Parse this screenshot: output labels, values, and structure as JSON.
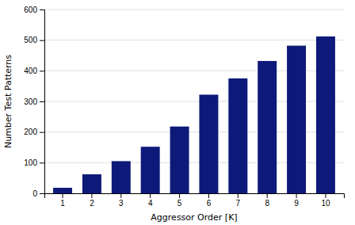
{
  "chart_data": {
    "type": "bar",
    "categories": [
      1,
      2,
      3,
      4,
      5,
      6,
      7,
      8,
      9,
      10
    ],
    "values": [
      18,
      62,
      105,
      152,
      218,
      322,
      375,
      432,
      482,
      512
    ],
    "color": "#0d1a7a",
    "xlabel": "Aggressor Order [K]",
    "ylabel": "Number Test Patterns",
    "ylim": [
      0,
      600
    ],
    "yticks": [
      0,
      100,
      200,
      300,
      400,
      500,
      600
    ],
    "grid": true
  }
}
